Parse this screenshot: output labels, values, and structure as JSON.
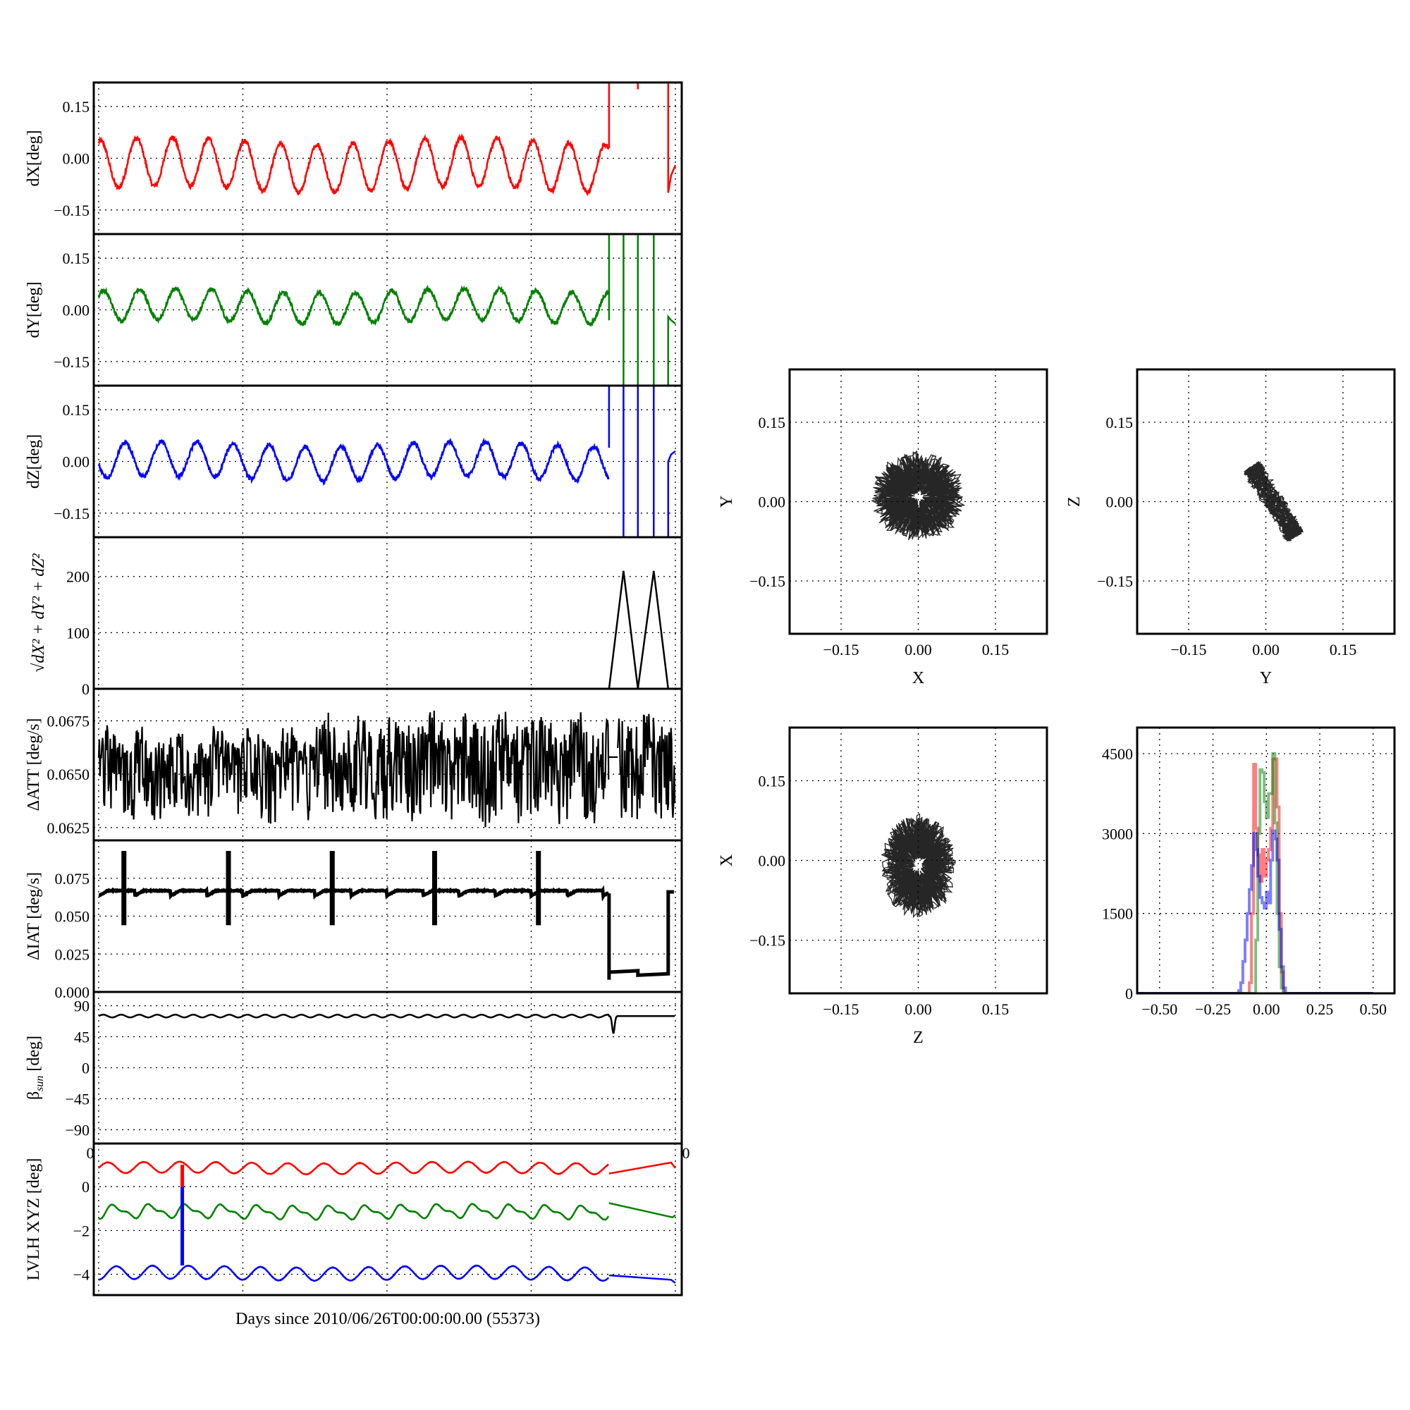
{
  "xlabel": "Days since 2010/06/26T00:00:00.00 (55373)",
  "stray_labels": [
    "0",
    "0"
  ],
  "chart_data": [
    {
      "id": "dX",
      "type": "line",
      "ylabel": "dX[deg]",
      "xlim": [
        -0.034,
        4.044
      ],
      "xgrid": [
        0,
        1,
        2,
        3,
        4
      ],
      "ylim": [
        -0.22,
        0.22
      ],
      "yticks": [
        {
          "v": 0.15,
          "t": "0.15"
        },
        {
          "v": 0,
          "t": "0.00"
        },
        {
          "v": -0.15,
          "t": "−0.15"
        }
      ],
      "series": [
        {
          "name": "dX",
          "color": "#ff0000",
          "periodic": {
            "from": 0,
            "to": 3.54,
            "mean": -0.02,
            "amplitude": 0.07,
            "period": 0.25,
            "phase": -0.05,
            "noise": 0.006
          },
          "points": [
            [
              3.54,
              0.03
            ],
            [
              3.54,
              0.3
            ],
            null,
            [
              3.74,
              0.2
            ],
            [
              3.74,
              0.24
            ],
            null,
            [
              3.95,
              0.3
            ],
            [
              3.95,
              -0.1
            ],
            [
              3.97,
              -0.05
            ],
            [
              4.0,
              -0.02
            ]
          ]
        }
      ]
    },
    {
      "id": "dY",
      "type": "line",
      "ylabel": "dY[deg]",
      "xlim": [
        -0.034,
        4.044
      ],
      "xgrid": [
        0,
        1,
        2,
        3,
        4
      ],
      "ylim": [
        -0.22,
        0.22
      ],
      "yticks": [
        {
          "v": 0.15,
          "t": "0.15"
        },
        {
          "v": 0,
          "t": "0.00"
        },
        {
          "v": -0.15,
          "t": "−0.15"
        }
      ],
      "series": [
        {
          "name": "dY",
          "color": "#008000",
          "periodic": {
            "from": 0,
            "to": 3.54,
            "mean": 0.01,
            "amplitude": 0.045,
            "period": 0.25,
            "phase": -0.03,
            "noise": 0.006
          },
          "points": [
            [
              3.54,
              -0.03
            ],
            [
              3.54,
              0.3
            ],
            null,
            [
              3.64,
              0.3
            ],
            [
              3.64,
              -0.3
            ],
            null,
            [
              3.74,
              0.3
            ],
            [
              3.74,
              -0.3
            ],
            null,
            [
              3.85,
              0.3
            ],
            [
              3.85,
              -0.3
            ],
            null,
            [
              3.95,
              -0.3
            ],
            [
              3.95,
              -0.02
            ],
            [
              3.97,
              -0.03
            ],
            [
              4.0,
              -0.04
            ]
          ]
        }
      ]
    },
    {
      "id": "dZ",
      "type": "line",
      "ylabel": "dZ[deg]",
      "xlim": [
        -0.034,
        4.044
      ],
      "xgrid": [
        0,
        1,
        2,
        3,
        4
      ],
      "ylim": [
        -0.22,
        0.22
      ],
      "yticks": [
        {
          "v": 0.15,
          "t": "0.15"
        },
        {
          "v": 0,
          "t": "0.00"
        },
        {
          "v": -0.15,
          "t": "−0.15"
        }
      ],
      "series": [
        {
          "name": "dZ",
          "color": "#0000ff",
          "periodic": {
            "from": 0,
            "to": 3.54,
            "mean": 0.0,
            "amplitude": 0.05,
            "period": 0.25,
            "phase": 0.12,
            "noise": 0.006
          },
          "points": [
            [
              3.54,
              0.04
            ],
            [
              3.54,
              0.3
            ],
            null,
            [
              3.64,
              0.3
            ],
            [
              3.64,
              -0.3
            ],
            null,
            [
              3.74,
              0.3
            ],
            [
              3.74,
              -0.3
            ],
            null,
            [
              3.85,
              0.3
            ],
            [
              3.85,
              -0.3
            ],
            null,
            [
              3.95,
              -0.3
            ],
            [
              3.95,
              0.0
            ],
            [
              3.97,
              0.02
            ],
            [
              4.0,
              0.03
            ]
          ]
        }
      ]
    },
    {
      "id": "mag",
      "type": "line",
      "ylabel": "√dX² + dY² + dZ²",
      "xlim": [
        -0.034,
        4.044
      ],
      "xgrid": [
        0,
        1,
        2,
        3,
        4
      ],
      "ylim": [
        0,
        270
      ],
      "yticks": [
        {
          "v": 200,
          "t": "200"
        },
        {
          "v": 100,
          "t": "100"
        },
        {
          "v": 0,
          "t": "0"
        }
      ],
      "series": [
        {
          "name": "magnitude",
          "color": "#000000",
          "points": [
            [
              -0.03,
              0
            ],
            [
              3.54,
              0
            ],
            [
              3.64,
              210
            ],
            [
              3.74,
              0
            ],
            [
              3.85,
              210
            ],
            [
              3.95,
              0
            ],
            [
              4.0,
              0
            ]
          ]
        }
      ]
    },
    {
      "id": "datt",
      "type": "line",
      "ylabel": "ΔATT [deg/s]",
      "xlim": [
        -0.034,
        4.044
      ],
      "xgrid": [
        0,
        1,
        2,
        3,
        4
      ],
      "ylim": [
        0.0619,
        0.069
      ],
      "yticks": [
        {
          "v": 0.0675,
          "t": "0.0675"
        },
        {
          "v": 0.065,
          "t": "0.0650"
        },
        {
          "v": 0.0625,
          "t": "0.0625"
        }
      ],
      "series": [
        {
          "name": "ΔATT",
          "color": "#000000",
          "noisy": {
            "segments": [
              [
                0,
                3.54
              ],
              [
                3.6,
                4.0
              ]
            ],
            "mean": 0.0657,
            "up": 0.0012,
            "down": 0.0028,
            "period": 0.25
          },
          "points": [
            [
              3.54,
              0.0658
            ],
            [
              3.6,
              0.0658
            ]
          ]
        }
      ]
    },
    {
      "id": "diat",
      "type": "line",
      "ylabel": "ΔIAT [deg/s]",
      "xlim": [
        -0.034,
        4.044
      ],
      "xgrid": [
        0,
        1,
        2,
        3,
        4
      ],
      "ylim": [
        0,
        0.1
      ],
      "yticks": [
        {
          "v": 0.075,
          "t": "0.075"
        },
        {
          "v": 0.05,
          "t": "0.050"
        },
        {
          "v": 0.025,
          "t": "0.025"
        },
        {
          "v": 0,
          "t": "0.000"
        }
      ],
      "series": [
        {
          "name": "ΔIAT",
          "color": "#000000",
          "sawtooth": {
            "from": 0,
            "to": 3.54,
            "low": 0.0635,
            "high": 0.0668,
            "period": 0.25
          },
          "spikes": {
            "x": [
              0.175,
              0.9,
              1.62,
              2.33,
              3.05
            ],
            "low": 0.044,
            "high": 0.093
          },
          "points": [
            [
              3.54,
              0.065
            ],
            [
              3.54,
              0.008
            ],
            [
              3.54,
              0.013
            ],
            [
              3.74,
              0.014
            ],
            [
              3.74,
              0.011
            ],
            [
              3.95,
              0.012
            ],
            [
              3.95,
              0.066
            ],
            [
              3.99,
              0.066
            ]
          ]
        }
      ]
    },
    {
      "id": "beta",
      "type": "line",
      "ylabel": {
        "symbol": "β",
        "sub": "sun",
        "unit": "[deg]"
      },
      "xlim": [
        -0.034,
        4.044
      ],
      "xgrid": [
        0,
        1,
        2,
        3,
        4
      ],
      "ylim": [
        -110,
        110
      ],
      "yticks": [
        {
          "v": 90,
          "t": "90"
        },
        {
          "v": 45,
          "t": "45"
        },
        {
          "v": 0,
          "t": "0"
        },
        {
          "v": -45,
          "t": "−45"
        },
        {
          "v": -90,
          "t": "−90"
        }
      ],
      "series": [
        {
          "name": "beta_sun",
          "color": "#000000",
          "beta": {
            "from": 0,
            "to": 4.0,
            "mean": 75,
            "amplitude": 2,
            "period": 0.125,
            "dip_x": 3.57,
            "dip_depth": 25
          }
        }
      ]
    },
    {
      "id": "lvlh",
      "type": "line",
      "ylabel": "LVLH XYZ [deg]",
      "xlim": [
        -0.034,
        4.044
      ],
      "xgrid": [
        0,
        1,
        2,
        3,
        4
      ],
      "ylim": [
        -4.95,
        1.97
      ],
      "yticks": [
        {
          "v": 0,
          "t": "0"
        },
        {
          "v": -2,
          "t": "−2"
        },
        {
          "v": -4,
          "t": "−4"
        }
      ],
      "series": [
        {
          "name": "LVLH X",
          "color": "#ff0000",
          "periodic": {
            "from": 0,
            "to": 3.54,
            "mean": 0.85,
            "amplitude": 0.25,
            "period": 0.25,
            "phase": 0.0,
            "noise": 0.01
          },
          "points": [
            [
              3.54,
              0.6
            ],
            [
              3.97,
              1.1
            ],
            [
              4.0,
              0.85
            ]
          ],
          "jump": {
            "x": 0.58,
            "from": 1.0,
            "to": 0
          }
        },
        {
          "name": "LVLH Y",
          "color": "#008000",
          "periodic": {
            "from": 0,
            "to": 3.54,
            "mean": -1.15,
            "amplitude": 0.25,
            "period": 0.25,
            "phase": 0.05,
            "noise": 0.01,
            "harmonic": 0.12
          },
          "points": [
            [
              3.54,
              -0.75
            ],
            [
              3.98,
              -1.4
            ],
            [
              4.0,
              -1.3
            ]
          ]
        },
        {
          "name": "LVLH Z",
          "color": "#0000ff",
          "periodic": {
            "from": 0,
            "to": 3.54,
            "mean": -3.95,
            "amplitude": 0.3,
            "period": 0.25,
            "phase": 0.06,
            "noise": 0.01
          },
          "points": [
            [
              3.54,
              -4.05
            ],
            [
              3.97,
              -4.25
            ],
            [
              4.0,
              -4.4
            ]
          ],
          "jump": {
            "x": 0.58,
            "from": 0,
            "to": -3.6
          }
        }
      ]
    },
    {
      "id": "xy",
      "type": "scatter",
      "xlabel": "X",
      "ylabel": "Y",
      "xlim": [
        -0.25,
        0.25
      ],
      "ylim": [
        -0.25,
        0.25
      ],
      "xticks": [
        {
          "v": -0.15,
          "t": "−0.15"
        },
        {
          "v": 0,
          "t": "0.00"
        },
        {
          "v": 0.15,
          "t": "0.15"
        }
      ],
      "yticks": [
        {
          "v": 0.15,
          "t": "0.15"
        },
        {
          "v": 0,
          "t": "0.00"
        },
        {
          "v": -0.15,
          "t": "−0.15"
        }
      ],
      "shape": {
        "kind": "ring",
        "cx": 0.0,
        "cy": 0.01,
        "rx": 0.05,
        "ry": 0.045,
        "spread": 0.03,
        "tilt": 0
      }
    },
    {
      "id": "yz",
      "type": "scatter",
      "xlabel": "Y",
      "ylabel": "Z",
      "xlim": [
        -0.25,
        0.25
      ],
      "ylim": [
        -0.25,
        0.25
      ],
      "xticks": [
        {
          "v": -0.15,
          "t": "−0.15"
        },
        {
          "v": 0,
          "t": "0.00"
        },
        {
          "v": 0.15,
          "t": "0.15"
        }
      ],
      "yticks": [
        {
          "v": 0.15,
          "t": "0.15"
        },
        {
          "v": 0,
          "t": "0.00"
        },
        {
          "v": -0.15,
          "t": "−0.15"
        }
      ],
      "shape": {
        "kind": "band",
        "cx": 0.015,
        "cy": 0.0,
        "rx": 0.075,
        "ry": 0.012,
        "spread": 0.01,
        "tilt": -1.0
      }
    },
    {
      "id": "zx",
      "type": "scatter",
      "xlabel": "Z",
      "ylabel": "X",
      "xlim": [
        -0.25,
        0.25
      ],
      "ylim": [
        -0.25,
        0.25
      ],
      "xticks": [
        {
          "v": -0.15,
          "t": "−0.15"
        },
        {
          "v": 0,
          "t": "0.00"
        },
        {
          "v": 0.15,
          "t": "0.15"
        }
      ],
      "yticks": [
        {
          "v": 0.15,
          "t": "0.15"
        },
        {
          "v": 0,
          "t": "0.00"
        },
        {
          "v": -0.15,
          "t": "−0.15"
        }
      ],
      "shape": {
        "kind": "ring",
        "cx": 0.0,
        "cy": -0.01,
        "rx": 0.04,
        "ry": 0.055,
        "spread": 0.03,
        "tilt": 0
      }
    },
    {
      "id": "hist",
      "type": "histogram",
      "xlim": [
        -0.605,
        0.6
      ],
      "ylim": [
        0,
        4990
      ],
      "xticks": [
        {
          "v": -0.5,
          "t": "−0.50"
        },
        {
          "v": -0.25,
          "t": "−0.25"
        },
        {
          "v": 0,
          "t": "0.00"
        },
        {
          "v": 0.25,
          "t": "0.25"
        },
        {
          "v": 0.5,
          "t": "0.50"
        }
      ],
      "yticks": [
        {
          "v": 4500,
          "t": "4500"
        },
        {
          "v": 3000,
          "t": "3000"
        },
        {
          "v": 1500,
          "t": "1500"
        },
        {
          "v": 0,
          "t": "0"
        }
      ],
      "bin_start": -0.15,
      "bin_width": 0.01,
      "series": [
        {
          "name": "dX",
          "color": "#ff0000",
          "counts": [
            0,
            0,
            0,
            0,
            0,
            0,
            0,
            200,
            1500,
            4300,
            3100,
            2600,
            2100,
            2700,
            2200,
            2500,
            2700,
            3100,
            4400,
            4400,
            3500,
            1500,
            400,
            0,
            0,
            0
          ]
        },
        {
          "name": "dY",
          "color": "#008000",
          "counts": [
            0,
            0,
            0,
            0,
            0,
            0,
            0,
            0,
            0,
            0,
            1000,
            3000,
            4200,
            4150,
            3600,
            3300,
            3750,
            3750,
            4500,
            3200,
            1500,
            500,
            100,
            0,
            0,
            0
          ]
        },
        {
          "name": "dZ",
          "color": "#0000ff",
          "counts": [
            0,
            0,
            50,
            200,
            600,
            1000,
            1500,
            1950,
            2400,
            3000,
            2700,
            2200,
            1800,
            1700,
            1600,
            1900,
            1700,
            2500,
            3050,
            2900,
            2500,
            1200,
            500,
            100,
            0,
            0
          ]
        }
      ]
    }
  ]
}
